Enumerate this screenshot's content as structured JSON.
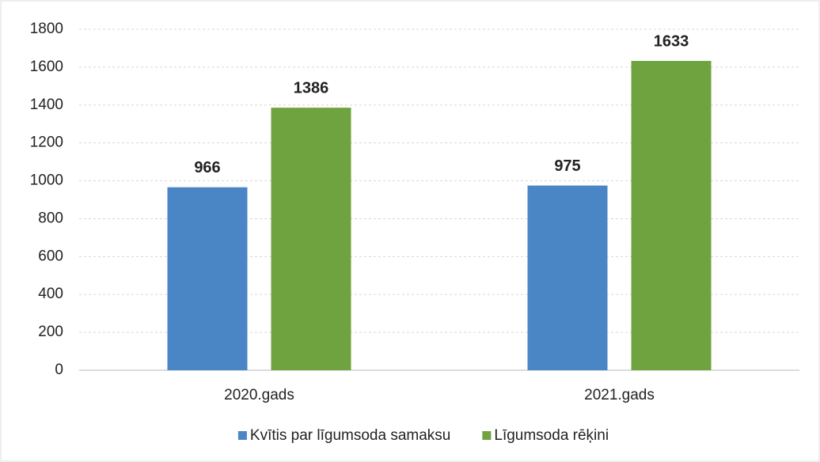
{
  "chart_data": {
    "type": "bar",
    "categories": [
      "2020.gads",
      "2021.gads"
    ],
    "series": [
      {
        "name": "Kvītis par līgumsoda samaksu",
        "color": "#4a86c5",
        "values": [
          966,
          975
        ]
      },
      {
        "name": "Līgumsoda rēķini",
        "color": "#6fa33f",
        "values": [
          1386,
          1633
        ]
      }
    ],
    "ylim": [
      0,
      1800
    ],
    "yticks": [
      0,
      200,
      400,
      600,
      800,
      1000,
      1200,
      1400,
      1600,
      1800
    ],
    "grid": true,
    "legend": "bottom",
    "data_labels": true
  }
}
